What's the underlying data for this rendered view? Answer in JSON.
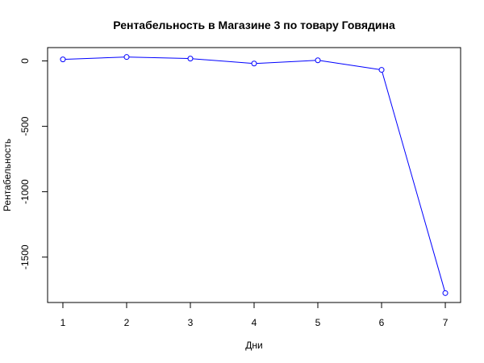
{
  "chart_data": {
    "type": "line",
    "title": "Рентабельность в Магазине 3 по товару Говядина",
    "xlabel": "Дни",
    "ylabel": "Рентабельность",
    "x": [
      1,
      2,
      3,
      4,
      5,
      6,
      7
    ],
    "series": [
      {
        "values": [
          12,
          30,
          18,
          -20,
          5,
          -68,
          -1775
        ]
      }
    ],
    "xticks": [
      "1",
      "2",
      "3",
      "4",
      "5",
      "6",
      "7"
    ],
    "yticks": [
      "0",
      "-500",
      "-1000",
      "-1500"
    ],
    "ytick_values": [
      0,
      -500,
      -1000,
      -1500
    ],
    "xlim": [
      0.76,
      7.24
    ],
    "ylim": [
      -1847,
      102
    ],
    "line_color": "#0000ff",
    "marker": "open-circle",
    "grid": false,
    "legend": "none"
  }
}
